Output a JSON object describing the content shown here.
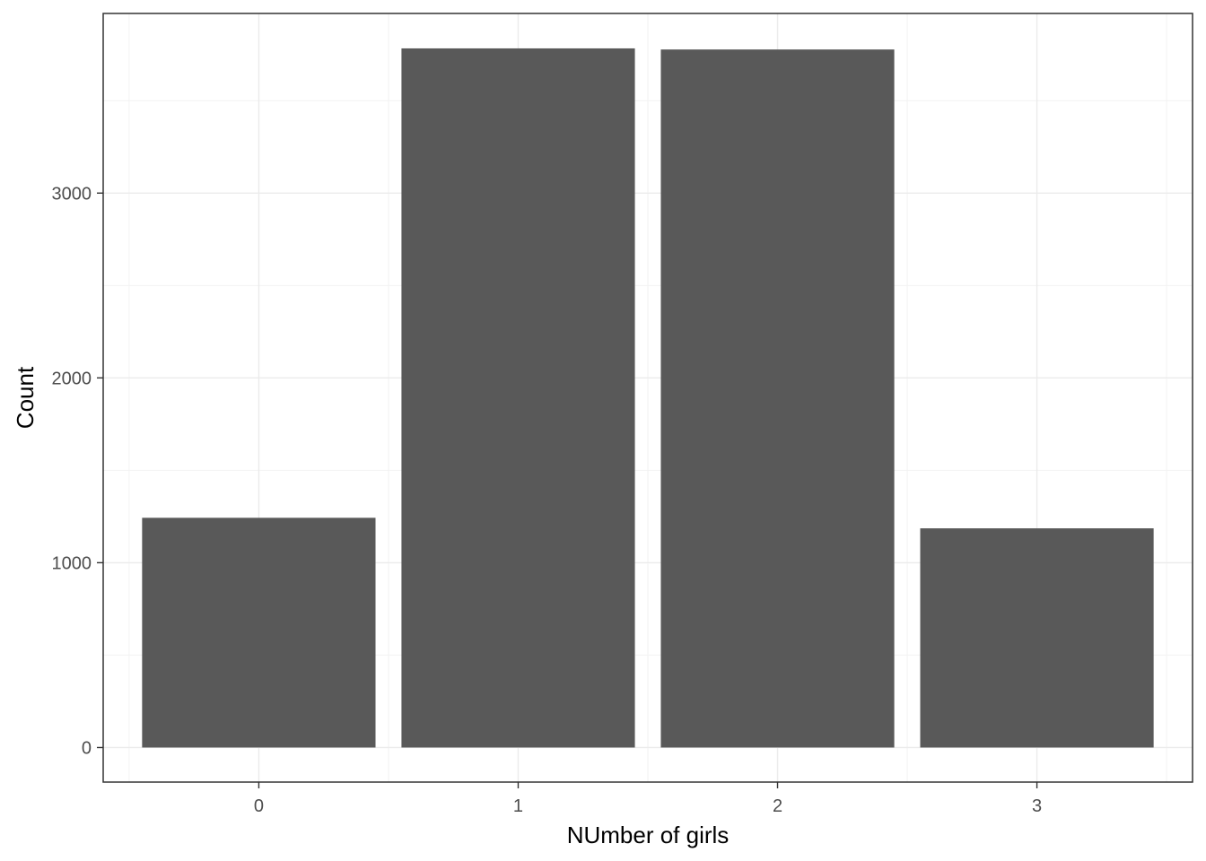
{
  "chart_data": {
    "type": "bar",
    "title": "",
    "xlabel": "NUmber of girls",
    "ylabel": "Count",
    "categories": [
      "0",
      "1",
      "2",
      "3"
    ],
    "values": [
      1243,
      3783,
      3777,
      1186
    ],
    "ylim": [
      -187,
      3972
    ],
    "yticks": [
      0,
      1000,
      2000,
      3000
    ],
    "ytick_labels": [
      "0",
      "1000",
      "2000",
      "3000"
    ],
    "grid": true,
    "legend": "none",
    "colors": {
      "bar": "#595959",
      "grid_major": "#ebebeb",
      "grid_minor": "#f2f2f2",
      "panel_border": "#333333",
      "axis_text": "#4d4d4d",
      "axis_title": "#000000"
    }
  }
}
